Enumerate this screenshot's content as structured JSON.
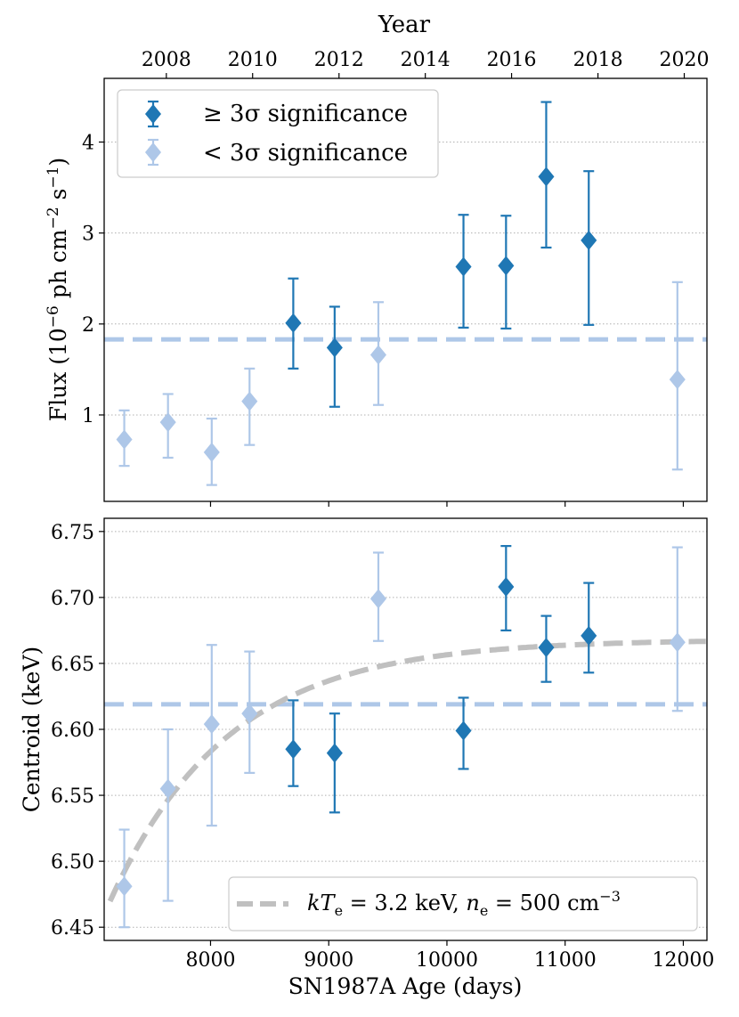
{
  "chart_data": [
    {
      "type": "scatter",
      "panel": "top",
      "xlabel": "",
      "ylabel": "Flux (10⁻⁶ ph cm⁻² s⁻¹)",
      "x_secondary_label": "Year",
      "xlim": [
        7100,
        12200
      ],
      "ylim": [
        0.05,
        4.7
      ],
      "yticks": [
        1,
        2,
        3,
        4
      ],
      "secondary_xticks": [
        {
          "label": "2008",
          "x": 7626
        },
        {
          "label": "2010",
          "x": 8356
        },
        {
          "label": "2012",
          "x": 9087
        },
        {
          "label": "2014",
          "x": 9817
        },
        {
          "label": "2016",
          "x": 10547
        },
        {
          "label": "2018",
          "x": 11278
        },
        {
          "label": "2020",
          "x": 12008
        }
      ],
      "reference_line": {
        "y": 1.83,
        "style": "dashed",
        "color": "#aec7e8"
      },
      "grid": "horizontal dotted",
      "legend_position": "top-left",
      "series": [
        {
          "name": "≥ 3σ significance",
          "color": "#1f77b4",
          "points": [
            {
              "x": 8700,
              "y": 2.01,
              "ylo": 1.51,
              "yhi": 2.5
            },
            {
              "x": 9050,
              "y": 1.74,
              "ylo": 1.09,
              "yhi": 2.19
            },
            {
              "x": 10140,
              "y": 2.63,
              "ylo": 1.96,
              "yhi": 3.2
            },
            {
              "x": 10500,
              "y": 2.64,
              "ylo": 1.95,
              "yhi": 3.19
            },
            {
              "x": 10840,
              "y": 3.62,
              "ylo": 2.84,
              "yhi": 4.44
            },
            {
              "x": 11200,
              "y": 2.92,
              "ylo": 1.99,
              "yhi": 3.68
            }
          ]
        },
        {
          "name": "< 3σ significance",
          "color": "#aec7e8",
          "points": [
            {
              "x": 7270,
              "y": 0.73,
              "ylo": 0.44,
              "yhi": 1.05
            },
            {
              "x": 7640,
              "y": 0.92,
              "ylo": 0.53,
              "yhi": 1.23
            },
            {
              "x": 8010,
              "y": 0.59,
              "ylo": 0.23,
              "yhi": 0.96
            },
            {
              "x": 8330,
              "y": 1.15,
              "ylo": 0.67,
              "yhi": 1.51
            },
            {
              "x": 9420,
              "y": 1.66,
              "ylo": 1.11,
              "yhi": 2.24
            },
            {
              "x": 11950,
              "y": 1.39,
              "ylo": 0.4,
              "yhi": 2.46
            }
          ]
        }
      ]
    },
    {
      "type": "scatter",
      "panel": "bottom",
      "xlabel": "SN1987A Age (days)",
      "ylabel": "Centroid (keV)",
      "xlim": [
        7100,
        12200
      ],
      "ylim": [
        6.44,
        6.76
      ],
      "xticks": [
        8000,
        9000,
        10000,
        11000,
        12000
      ],
      "yticks": [
        6.45,
        6.5,
        6.55,
        6.6,
        6.65,
        6.7,
        6.75
      ],
      "reference_line": {
        "y": 6.619,
        "style": "dashed",
        "color": "#aec7e8"
      },
      "model_curve": {
        "name": "kT_e = 3.2 keV, n_e = 500 cm⁻³",
        "color": "#c0c0c0",
        "style": "dashed",
        "form": "y = 6.668 - 0.1983 * exp(-(x - 7150) / 1000)"
      },
      "grid": "horizontal dotted",
      "legend_position": "bottom-right",
      "series": [
        {
          "name": "≥ 3σ significance",
          "color": "#1f77b4",
          "points": [
            {
              "x": 8700,
              "y": 6.585,
              "ylo": 6.557,
              "yhi": 6.622
            },
            {
              "x": 9050,
              "y": 6.582,
              "ylo": 6.537,
              "yhi": 6.612
            },
            {
              "x": 10140,
              "y": 6.599,
              "ylo": 6.57,
              "yhi": 6.624
            },
            {
              "x": 10500,
              "y": 6.708,
              "ylo": 6.675,
              "yhi": 6.739
            },
            {
              "x": 10840,
              "y": 6.662,
              "ylo": 6.636,
              "yhi": 6.686
            },
            {
              "x": 11200,
              "y": 6.671,
              "ylo": 6.643,
              "yhi": 6.711
            }
          ]
        },
        {
          "name": "< 3σ significance",
          "color": "#aec7e8",
          "points": [
            {
              "x": 7270,
              "y": 6.481,
              "ylo": 6.45,
              "yhi": 6.524
            },
            {
              "x": 7640,
              "y": 6.555,
              "ylo": 6.47,
              "yhi": 6.6
            },
            {
              "x": 8010,
              "y": 6.604,
              "ylo": 6.527,
              "yhi": 6.664
            },
            {
              "x": 8330,
              "y": 6.612,
              "ylo": 6.567,
              "yhi": 6.659
            },
            {
              "x": 9420,
              "y": 6.699,
              "ylo": 6.667,
              "yhi": 6.734
            },
            {
              "x": 11950,
              "y": 6.666,
              "ylo": 6.614,
              "yhi": 6.738
            }
          ]
        }
      ]
    }
  ]
}
